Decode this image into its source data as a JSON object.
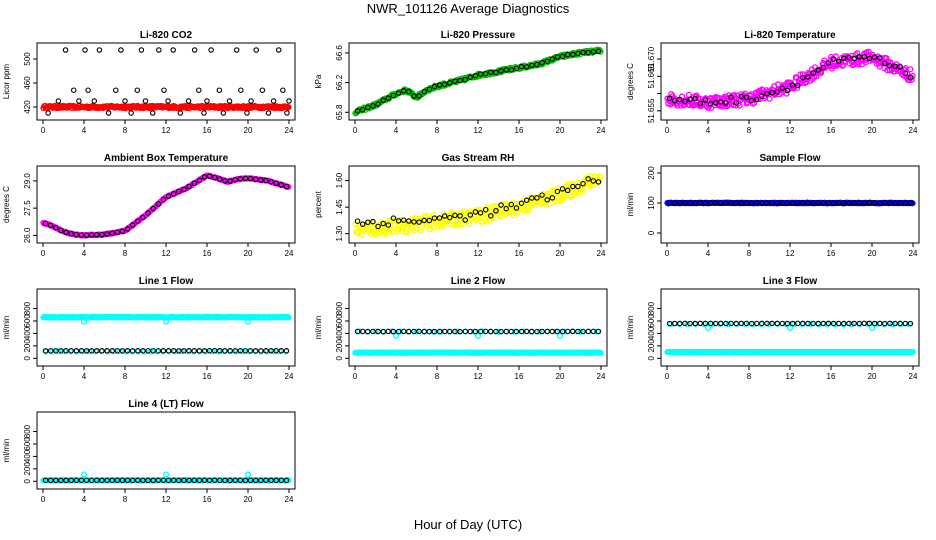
{
  "page": {
    "title": "NWR_101126  Average Diagnostics",
    "xlabel_common": "Hour of Day (UTC)"
  },
  "colors": {
    "black": "#000000",
    "red": "#ff0000",
    "green": "#00c000",
    "magenta": "#ff00ff",
    "yellow": "#ffff00",
    "blue": "#0000ff",
    "cyan": "#00ffff"
  },
  "chart_data": [
    {
      "type": "scatter",
      "title": "Li-820 CO2",
      "ylabel": "Licor ppm",
      "xlim": [
        0,
        24
      ],
      "xticks": [
        0,
        4,
        8,
        12,
        16,
        20,
        24
      ],
      "ylim": [
        405,
        520
      ],
      "yticks": [
        420,
        460,
        500
      ],
      "ytick_labels": [
        "420",
        "460",
        "500"
      ],
      "series": [
        {
          "name": "all",
          "color": "#ff0000",
          "shape": "circle",
          "kind": "const",
          "value": 420,
          "n": 300,
          "jitter": 2
        },
        {
          "name": "avg",
          "color": "#000000",
          "shape": "circle",
          "x": [
            0.5,
            1.5,
            2.2,
            3.0,
            3.5,
            4.1,
            4.4,
            5.0,
            5.5,
            6.4,
            7.1,
            7.6,
            8.0,
            8.6,
            9.2,
            9.6,
            10.0,
            10.7,
            11.3,
            11.8,
            12.2,
            12.7,
            13.4,
            14.2,
            14.8,
            15.2,
            15.7,
            16.0,
            16.4,
            17.2,
            17.6,
            18.2,
            18.9,
            19.3,
            19.9,
            20.3,
            20.8,
            21.4,
            22.0,
            22.5,
            23.0,
            23.4,
            23.8,
            24.0
          ],
          "y": [
            410,
            430,
            515,
            448,
            430,
            515,
            448,
            430,
            515,
            410,
            448,
            515,
            430,
            410,
            448,
            515,
            430,
            410,
            515,
            448,
            430,
            515,
            410,
            430,
            515,
            448,
            410,
            430,
            515,
            448,
            410,
            430,
            515,
            448,
            410,
            430,
            515,
            448,
            410,
            430,
            515,
            448,
            410,
            430
          ]
        }
      ]
    },
    {
      "type": "scatter",
      "title": "Li-820 Pressure",
      "ylabel": "kPa",
      "xlim": [
        0,
        24
      ],
      "xticks": [
        0,
        4,
        8,
        12,
        16,
        20,
        24
      ],
      "ylim": [
        65.75,
        66.68
      ],
      "yticks": [
        65.8,
        66.2,
        66.6
      ],
      "ytick_labels": [
        "65.8",
        "66.2",
        "66.6"
      ],
      "series": [
        {
          "name": "all",
          "color": "#00c000",
          "shape": "circle",
          "kind": "curve",
          "n": 300,
          "jitter": 0.02,
          "x": [
            0,
            2,
            4,
            5,
            6,
            7,
            8,
            10,
            12,
            14,
            16,
            18,
            20,
            22,
            24
          ],
          "y": [
            65.8,
            65.9,
            66.05,
            66.1,
            66.0,
            66.1,
            66.15,
            66.22,
            66.3,
            66.35,
            66.4,
            66.45,
            66.55,
            66.6,
            66.63
          ]
        },
        {
          "name": "avg",
          "color": "#000000",
          "shape": "circle",
          "kind": "curve",
          "n": 48,
          "jitter": 0.01,
          "x": [
            0,
            2,
            4,
            5,
            6,
            7,
            8,
            10,
            12,
            14,
            16,
            18,
            20,
            22,
            24
          ],
          "y": [
            65.8,
            65.9,
            66.05,
            66.1,
            66.0,
            66.1,
            66.15,
            66.22,
            66.3,
            66.35,
            66.4,
            66.45,
            66.55,
            66.6,
            66.63
          ]
        }
      ]
    },
    {
      "type": "scatter",
      "title": "Li-820 Temperature",
      "ylabel": "degrees C",
      "xlim": [
        0,
        24
      ],
      "xticks": [
        0,
        4,
        8,
        12,
        16,
        20,
        24
      ],
      "ylim": [
        51.6535,
        51.6735
      ],
      "yticks": [
        51.655,
        51.66,
        51.665,
        51.67
      ],
      "ytick_labels": [
        "51.655",
        "",
        "51.665",
        "51.670"
      ],
      "series": [
        {
          "name": "all",
          "color": "#ff00ff",
          "shape": "circle",
          "kind": "curve",
          "n": 320,
          "jitter": 0.0018,
          "x": [
            0,
            4,
            8,
            12,
            16,
            20,
            24
          ],
          "y": [
            51.6585,
            51.6575,
            51.6585,
            51.662,
            51.669,
            51.6705,
            51.665
          ]
        },
        {
          "name": "avg",
          "color": "#000000",
          "shape": "circle",
          "kind": "curve",
          "n": 48,
          "jitter": 0.001,
          "x": [
            0,
            4,
            8,
            12,
            16,
            20,
            24
          ],
          "y": [
            51.6585,
            51.6575,
            51.6585,
            51.662,
            51.669,
            51.6705,
            51.665
          ]
        }
      ]
    },
    {
      "type": "scatter",
      "title": "Ambient Box Temperature",
      "ylabel": "degrees C",
      "xlim": [
        0,
        24
      ],
      "xticks": [
        0,
        4,
        8,
        12,
        16,
        20,
        24
      ],
      "ylim": [
        25.8,
        29.6
      ],
      "yticks": [
        26.0,
        27.5,
        29.0
      ],
      "ytick_labels": [
        "26.0",
        "27.5",
        "29.0"
      ],
      "series": [
        {
          "name": "all",
          "color": "#ff00ff",
          "shape": "circle",
          "kind": "curve",
          "n": 300,
          "jitter": 0.02,
          "x": [
            0,
            1,
            2,
            3,
            4,
            6,
            8,
            10,
            12,
            14,
            16,
            17,
            18,
            19,
            20,
            22,
            24
          ],
          "y": [
            26.7,
            26.5,
            26.2,
            26.05,
            26.0,
            26.05,
            26.25,
            27.1,
            28.1,
            28.6,
            29.3,
            29.15,
            28.95,
            29.1,
            29.15,
            29.0,
            28.65
          ]
        },
        {
          "name": "avg",
          "color": "#000000",
          "shape": "circle",
          "kind": "curve",
          "n": 48,
          "jitter": 0.0,
          "x": [
            0,
            1,
            2,
            3,
            4,
            6,
            8,
            10,
            12,
            14,
            16,
            17,
            18,
            19,
            20,
            22,
            24
          ],
          "y": [
            26.7,
            26.5,
            26.2,
            26.05,
            26.0,
            26.05,
            26.25,
            27.1,
            28.1,
            28.6,
            29.3,
            29.15,
            28.95,
            29.1,
            29.15,
            29.0,
            28.65
          ]
        }
      ]
    },
    {
      "type": "scatter",
      "title": "Gas Stream RH",
      "ylabel": "percent",
      "xlim": [
        0,
        24
      ],
      "xticks": [
        0,
        4,
        8,
        12,
        16,
        20,
        24
      ],
      "ylim": [
        1.27,
        1.66
      ],
      "yticks": [
        1.3,
        1.45,
        1.6
      ],
      "ytick_labels": [
        "1.30",
        "1.45",
        "1.60"
      ],
      "series": [
        {
          "name": "all",
          "color": "#ffff00",
          "shape": "circle",
          "kind": "curve",
          "n": 320,
          "jitter": 0.04,
          "x": [
            0,
            4,
            8,
            12,
            16,
            20,
            24
          ],
          "y": [
            1.32,
            1.34,
            1.37,
            1.4,
            1.45,
            1.52,
            1.62
          ]
        },
        {
          "name": "avg",
          "color": "#000000",
          "shape": "circle",
          "kind": "curve",
          "n": 48,
          "jitter": 0.025,
          "x": [
            0,
            4,
            8,
            12,
            16,
            20,
            24
          ],
          "y": [
            1.36,
            1.37,
            1.38,
            1.41,
            1.46,
            1.53,
            1.62
          ]
        }
      ]
    },
    {
      "type": "scatter",
      "title": "Sample Flow",
      "ylabel": "ml/min",
      "xlim": [
        0,
        24
      ],
      "xticks": [
        0,
        4,
        8,
        12,
        16,
        20,
        24
      ],
      "ylim": [
        -20,
        210
      ],
      "yticks": [
        0,
        100,
        200
      ],
      "ytick_labels": [
        "0",
        "100",
        "200"
      ],
      "series": [
        {
          "name": "all",
          "color": "#0000ff",
          "shape": "circle",
          "kind": "const",
          "value": 100,
          "n": 300,
          "jitter": 1
        },
        {
          "name": "avg",
          "color": "#000000",
          "shape": "circle",
          "kind": "const",
          "value": 100,
          "n": 48,
          "jitter": 0.5
        }
      ]
    },
    {
      "type": "scatter",
      "title": "Line 1 Flow",
      "ylabel": "ml/min",
      "xlim": [
        0,
        24
      ],
      "xticks": [
        0,
        4,
        8,
        12,
        16,
        20,
        24
      ],
      "ylim": [
        -60,
        1050
      ],
      "yticks": [
        0,
        200,
        400,
        600,
        800
      ],
      "ytick_labels": [
        "0",
        "200",
        "400",
        "600",
        "800"
      ],
      "series": [
        {
          "name": "all",
          "color": "#00ffff",
          "shape": "circle",
          "kind": "const",
          "value": 660,
          "n": 300,
          "jitter": 5,
          "outliers_x": [
            4,
            12,
            20
          ],
          "outliers_y": [
            590,
            590,
            590
          ]
        },
        {
          "name": "all-low",
          "color": "#00ffff",
          "shape": "circle",
          "kind": "const",
          "value": 110,
          "n": 40,
          "jitter": 2
        },
        {
          "name": "avg",
          "color": "#000000",
          "shape": "circle",
          "kind": "const",
          "value": 120,
          "n": 48,
          "jitter": 1
        }
      ]
    },
    {
      "type": "scatter",
      "title": "Line 2 Flow",
      "ylabel": "ml/min",
      "xlim": [
        0,
        24
      ],
      "xticks": [
        0,
        4,
        8,
        12,
        16,
        20,
        24
      ],
      "ylim": [
        -60,
        1050
      ],
      "yticks": [
        0,
        200,
        400,
        600,
        800
      ],
      "ytick_labels": [
        "0",
        "200",
        "400",
        "600",
        "800"
      ],
      "series": [
        {
          "name": "all",
          "color": "#00ffff",
          "shape": "circle",
          "kind": "const",
          "value": 90,
          "n": 300,
          "jitter": 3
        },
        {
          "name": "all-high",
          "color": "#00ffff",
          "shape": "circle",
          "kind": "const",
          "value": 430,
          "n": 30,
          "jitter": 3,
          "outliers_x": [
            4,
            12,
            20
          ],
          "outliers_y": [
            360,
            360,
            360
          ]
        },
        {
          "name": "avg",
          "color": "#000000",
          "shape": "circle",
          "kind": "const",
          "value": 430,
          "n": 48,
          "jitter": 2
        }
      ]
    },
    {
      "type": "scatter",
      "title": "Line 3 Flow",
      "ylabel": "ml/min",
      "xlim": [
        0,
        24
      ],
      "xticks": [
        0,
        4,
        8,
        12,
        16,
        20,
        24
      ],
      "ylim": [
        -60,
        1050
      ],
      "yticks": [
        0,
        200,
        400,
        600,
        800
      ],
      "ytick_labels": [
        "0",
        "200",
        "400",
        "600",
        "800"
      ],
      "series": [
        {
          "name": "all",
          "color": "#00ffff",
          "shape": "circle",
          "kind": "const",
          "value": 100,
          "n": 300,
          "jitter": 3
        },
        {
          "name": "all-high",
          "color": "#00ffff",
          "shape": "circle",
          "kind": "const",
          "value": 550,
          "n": 30,
          "jitter": 3,
          "outliers_x": [
            4,
            12,
            20
          ],
          "outliers_y": [
            490,
            490,
            490
          ]
        },
        {
          "name": "avg",
          "color": "#000000",
          "shape": "circle",
          "kind": "const",
          "value": 560,
          "n": 48,
          "jitter": 2
        }
      ]
    },
    {
      "type": "scatter",
      "title": "Line 4 (LT) Flow",
      "ylabel": "ml/min",
      "xlim": [
        0,
        24
      ],
      "xticks": [
        0,
        4,
        8,
        12,
        16,
        20,
        24
      ],
      "ylim": [
        -60,
        1050
      ],
      "yticks": [
        0,
        200,
        400,
        600,
        800
      ],
      "ytick_labels": [
        "0",
        "200",
        "400",
        "600",
        "800"
      ],
      "series": [
        {
          "name": "all",
          "color": "#00ffff",
          "shape": "circle",
          "kind": "const",
          "value": 15,
          "n": 300,
          "jitter": 3,
          "outliers_x": [
            4,
            12,
            20
          ],
          "outliers_y": [
            110,
            110,
            110
          ]
        },
        {
          "name": "avg",
          "color": "#000000",
          "shape": "circle",
          "kind": "const",
          "value": 15,
          "n": 48,
          "jitter": 1
        }
      ]
    }
  ]
}
